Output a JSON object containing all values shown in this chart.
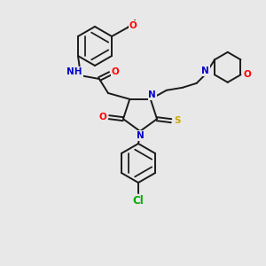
{
  "bg_color": "#e8e8e8",
  "bond_color": "#1a1a1a",
  "atom_colors": {
    "N": "#0000cc",
    "O": "#ff0000",
    "S": "#ccaa00",
    "Cl": "#00aa00",
    "H": "#555555",
    "C": "#1a1a1a"
  },
  "figsize": [
    3.0,
    3.0
  ],
  "dpi": 100,
  "lw": 1.4,
  "fs": 7.5
}
